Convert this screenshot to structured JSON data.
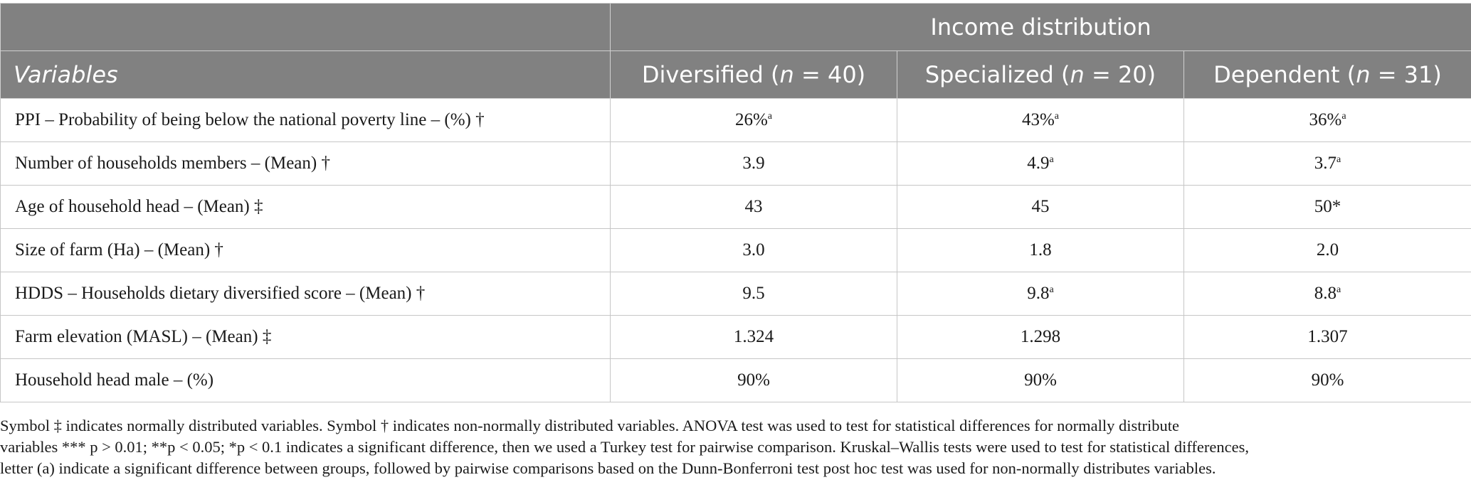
{
  "table": {
    "group_header": "Income distribution",
    "column_headers": {
      "variables": "Variables",
      "diversified": {
        "name": "Diversified (",
        "n_label": "n",
        "n_value": " = 40)"
      },
      "specialized": {
        "name": "Specialized (",
        "n_label": "n",
        "n_value": " = 20)"
      },
      "dependent": {
        "name": "Dependent (",
        "n_label": "n",
        "n_value": " = 31)"
      }
    },
    "rows": [
      {
        "label": "PPI – Probability of being below the national poverty line – (%) †",
        "cells": [
          {
            "v": "26%",
            "sup": "a"
          },
          {
            "v": "43%",
            "sup": "a"
          },
          {
            "v": "36%",
            "sup": "a"
          }
        ]
      },
      {
        "label": "Number of households members – (Mean) †",
        "cells": [
          {
            "v": "3.9",
            "sup": ""
          },
          {
            "v": "4.9",
            "sup": "a"
          },
          {
            "v": "3.7",
            "sup": "a"
          }
        ]
      },
      {
        "label": "Age of household head – (Mean) ‡",
        "cells": [
          {
            "v": "43",
            "sup": ""
          },
          {
            "v": "45",
            "sup": ""
          },
          {
            "v": "50*",
            "sup": ""
          }
        ]
      },
      {
        "label": "Size of farm (Ha) – (Mean) †",
        "cells": [
          {
            "v": "3.0",
            "sup": ""
          },
          {
            "v": "1.8",
            "sup": ""
          },
          {
            "v": "2.0",
            "sup": ""
          }
        ]
      },
      {
        "label": "HDDS – Households dietary diversified score – (Mean) †",
        "cells": [
          {
            "v": "9.5",
            "sup": ""
          },
          {
            "v": "9.8",
            "sup": "a"
          },
          {
            "v": "8.8",
            "sup": "a"
          }
        ]
      },
      {
        "label": "Farm elevation (MASL) – (Mean) ‡",
        "cells": [
          {
            "v": "1.324",
            "sup": ""
          },
          {
            "v": "1.298",
            "sup": ""
          },
          {
            "v": "1.307",
            "sup": ""
          }
        ]
      },
      {
        "label": "Household head male – (%)",
        "cells": [
          {
            "v": "90%",
            "sup": ""
          },
          {
            "v": "90%",
            "sup": ""
          },
          {
            "v": "90%",
            "sup": ""
          }
        ]
      }
    ]
  },
  "footnote": {
    "line1": "Symbol ‡ indicates normally distributed variables. Symbol † indicates non-normally distributed variables. ANOVA test was used to test for statistical differences for normally distribute",
    "line2": "variables *** p > 0.01; **p < 0.05; *p < 0.1 indicates a significant difference, then we used a Turkey test for pairwise comparison. Kruskal–Wallis tests were used to test for statistical differences,",
    "line3": "letter (a) indicate a significant difference between groups, followed by pairwise comparisons based on the Dunn-Bonferroni test post hoc test was used for non-normally distributes variables."
  }
}
